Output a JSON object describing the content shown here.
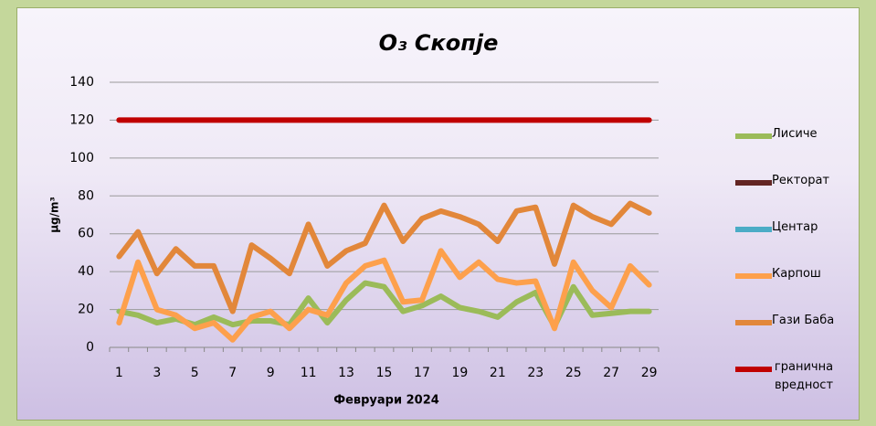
{
  "chart_data": {
    "type": "line",
    "title": "O₃ Скопје",
    "x_label": "Февруари 2024",
    "y_label": "μg/m³",
    "categories": [
      1,
      null,
      3,
      null,
      5,
      null,
      7,
      null,
      9,
      null,
      11,
      null,
      13,
      null,
      15,
      null,
      17,
      null,
      19,
      null,
      21,
      null,
      23,
      null,
      25,
      null,
      27,
      null,
      29
    ],
    "ylim": [
      0,
      140
    ],
    "yticks": [
      0,
      20,
      40,
      60,
      80,
      100,
      120,
      140
    ],
    "grid": true,
    "legend": "right",
    "series": [
      {
        "name": "Лисиче",
        "color": "#9bbb59",
        "values": [
          19,
          17,
          13,
          15,
          12,
          16,
          12,
          14,
          14,
          12,
          26,
          13,
          25,
          34,
          32,
          19,
          22,
          27,
          21,
          19,
          16,
          24,
          29,
          11,
          32,
          17,
          18,
          19,
          19
        ]
      },
      {
        "name": "Ректорат",
        "color": "#632523",
        "values": [
          null,
          null,
          null,
          null,
          null,
          null,
          null,
          null,
          null,
          null,
          null,
          null,
          null,
          null,
          null,
          null,
          null,
          null,
          null,
          null,
          null,
          null,
          null,
          null,
          null,
          null,
          null,
          null,
          null
        ]
      },
      {
        "name": "Центар",
        "color": "#4bacc6",
        "values": [
          null,
          null,
          null,
          null,
          null,
          null,
          null,
          null,
          null,
          null,
          null,
          null,
          null,
          null,
          null,
          null,
          null,
          null,
          null,
          null,
          null,
          null,
          null,
          null,
          null,
          null,
          null,
          null,
          null
        ]
      },
      {
        "name": "Карпош",
        "color": "#fda04c",
        "values": [
          13,
          45,
          20,
          17,
          10,
          13,
          4,
          16,
          19,
          10,
          20,
          17,
          34,
          43,
          46,
          24,
          25,
          51,
          37,
          45,
          36,
          34,
          35,
          10,
          45,
          30,
          21,
          43,
          33
        ]
      },
      {
        "name": "Гази Баба",
        "color": "#e2873a",
        "values": [
          48,
          61,
          39,
          52,
          43,
          43,
          19,
          54,
          47,
          39,
          65,
          43,
          51,
          55,
          75,
          56,
          68,
          72,
          69,
          65,
          56,
          72,
          74,
          44,
          75,
          69,
          65,
          76,
          71
        ]
      },
      {
        "name": "гранична вредност",
        "color": "#c00000",
        "values": [
          120,
          120,
          120,
          120,
          120,
          120,
          120,
          120,
          120,
          120,
          120,
          120,
          120,
          120,
          120,
          120,
          120,
          120,
          120,
          120,
          120,
          120,
          120,
          120,
          120,
          120,
          120,
          120,
          120
        ]
      }
    ]
  }
}
